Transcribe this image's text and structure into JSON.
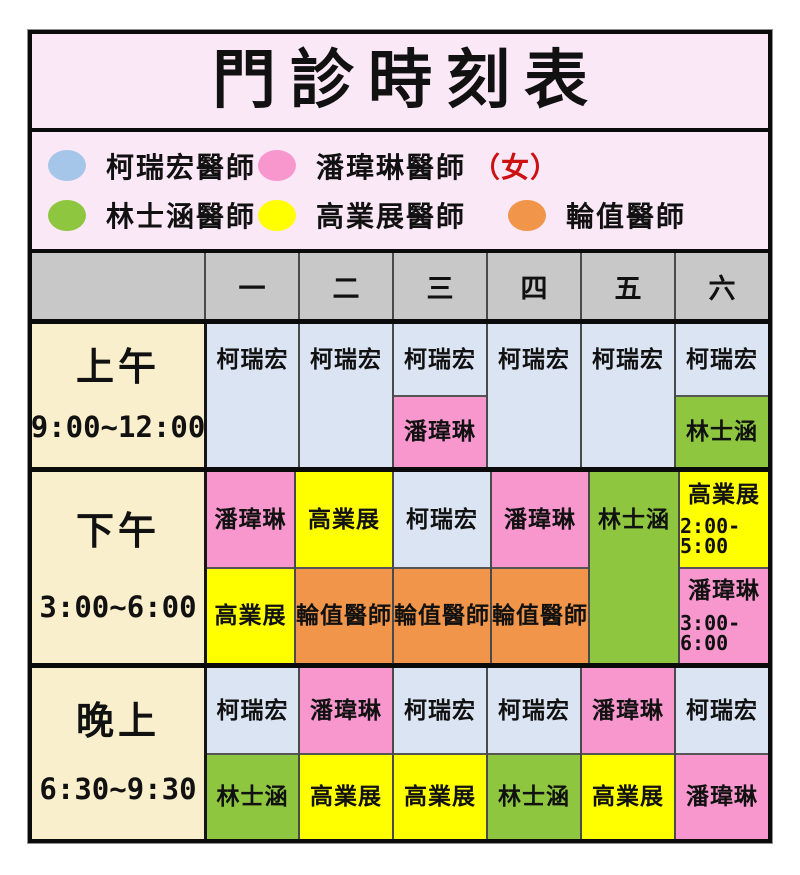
{
  "title": "門診時刻表",
  "legend": {
    "row1": [
      {
        "doctor": "柯瑞宏醫師",
        "dot": "blue-dot",
        "color": "legend_blue",
        "note": ""
      },
      {
        "doctor": "潘瑋琳醫師",
        "dot": "pink-dot",
        "color": "pink",
        "note": "（女）"
      }
    ],
    "row2": [
      {
        "doctor": "林士涵醫師",
        "dot": "green-dot",
        "color": "green",
        "note": ""
      },
      {
        "doctor": "高業展醫師",
        "dot": "yellow-dot",
        "color": "yellow",
        "note": ""
      },
      {
        "doctor": "輪值醫師",
        "dot": "orange-dot",
        "color": "orange",
        "note": ""
      }
    ]
  },
  "header": {
    "corner": "",
    "days": [
      "一",
      "二",
      "三",
      "四",
      "五",
      "六"
    ]
  },
  "schedule": [
    {
      "period": "上午",
      "time": "9:00~12:00",
      "cells": [
        {
          "split": false,
          "top": {
            "text": "柯瑞宏",
            "color": "blue"
          },
          "bottom": {
            "text": "",
            "color": "blue"
          }
        },
        {
          "split": false,
          "top": {
            "text": "柯瑞宏",
            "color": "blue"
          },
          "bottom": {
            "text": "",
            "color": "blue"
          }
        },
        {
          "split": true,
          "top": {
            "text": "柯瑞宏",
            "color": "blue"
          },
          "bottom": {
            "text": "潘瑋琳",
            "color": "pink"
          }
        },
        {
          "split": false,
          "top": {
            "text": "柯瑞宏",
            "color": "blue"
          },
          "bottom": {
            "text": "",
            "color": "blue"
          }
        },
        {
          "split": false,
          "top": {
            "text": "柯瑞宏",
            "color": "blue"
          },
          "bottom": {
            "text": "",
            "color": "blue"
          }
        },
        {
          "split": true,
          "top": {
            "text": "柯瑞宏",
            "color": "blue"
          },
          "bottom": {
            "text": "林士涵",
            "color": "green"
          }
        }
      ]
    },
    {
      "period": "下午",
      "time": "3:00~6:00",
      "cells": [
        {
          "split": true,
          "top": {
            "text": "潘瑋琳",
            "color": "pink"
          },
          "bottom": {
            "text": "高業展",
            "color": "yellow"
          }
        },
        {
          "split": true,
          "top": {
            "text": "高業展",
            "color": "yellow"
          },
          "bottom": {
            "text": "輪值醫師",
            "color": "orange"
          }
        },
        {
          "split": true,
          "top": {
            "text": "柯瑞宏",
            "color": "blue"
          },
          "bottom": {
            "text": "輪值醫師",
            "color": "orange"
          }
        },
        {
          "split": true,
          "top": {
            "text": "潘瑋琳",
            "color": "pink"
          },
          "bottom": {
            "text": "輪值醫師",
            "color": "orange"
          }
        },
        {
          "split": false,
          "top": {
            "text": "林士涵",
            "color": "green"
          },
          "bottom": {
            "text": "",
            "color": "green"
          }
        },
        {
          "split": true,
          "top": {
            "text": "高業展",
            "color": "yellow",
            "time": "2:00-5:00"
          },
          "bottom": {
            "text": "潘瑋琳",
            "color": "pink",
            "time": "3:00-6:00"
          }
        }
      ]
    },
    {
      "period": "晚上",
      "time": "6:30~9:30",
      "cells": [
        {
          "split": true,
          "top": {
            "text": "柯瑞宏",
            "color": "blue"
          },
          "bottom": {
            "text": "林士涵",
            "color": "green"
          }
        },
        {
          "split": true,
          "top": {
            "text": "潘瑋琳",
            "color": "pink"
          },
          "bottom": {
            "text": "高業展",
            "color": "yellow"
          }
        },
        {
          "split": true,
          "top": {
            "text": "柯瑞宏",
            "color": "blue"
          },
          "bottom": {
            "text": "高業展",
            "color": "yellow"
          }
        },
        {
          "split": true,
          "top": {
            "text": "柯瑞宏",
            "color": "blue"
          },
          "bottom": {
            "text": "林士涵",
            "color": "green"
          }
        },
        {
          "split": true,
          "top": {
            "text": "潘瑋琳",
            "color": "pink"
          },
          "bottom": {
            "text": "高業展",
            "color": "yellow"
          }
        },
        {
          "split": true,
          "top": {
            "text": "柯瑞宏",
            "color": "blue"
          },
          "bottom": {
            "text": "潘瑋琳",
            "color": "pink"
          }
        }
      ]
    }
  ],
  "colors": {
    "blue": "#dbe4f3",
    "legend_blue": "#a5c6e9",
    "pink": "#f897cd",
    "green": "#8ec640",
    "yellow": "#ffff00",
    "orange": "#f0954a",
    "cream": "#faefcc",
    "header_gray": "#c8c8c8",
    "board_pink": "#fbe8f7",
    "note_red": "#cc1111"
  }
}
